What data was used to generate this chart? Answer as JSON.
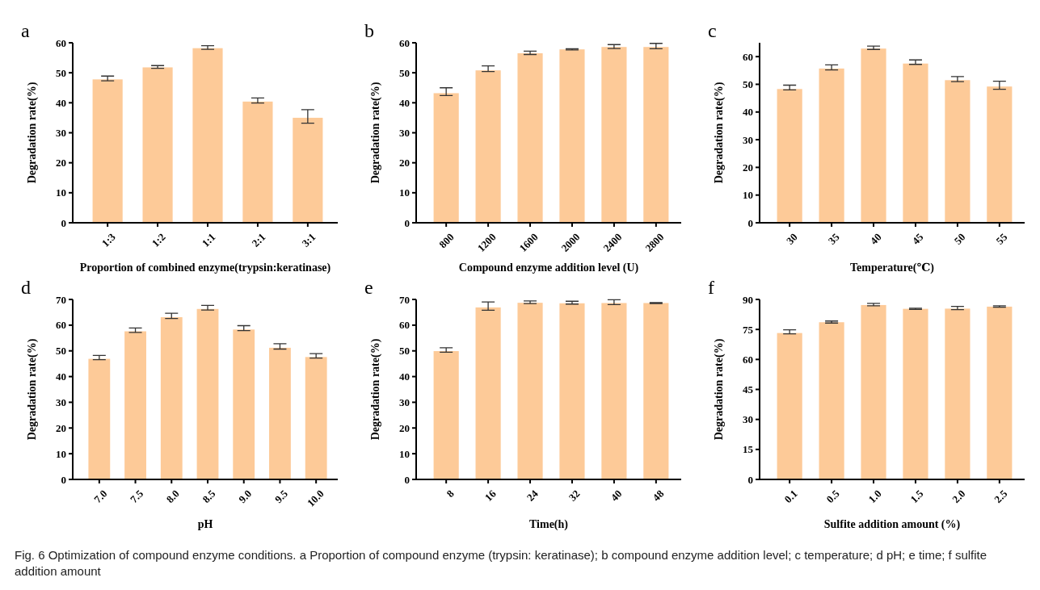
{
  "chart_data": [
    {
      "type": "bar",
      "title": "a",
      "xlabel": "Proportion of combined enzyme(trypsin:keratinase)",
      "ylabel": "Degradation rate(%)",
      "categories": [
        "1:3",
        "1:2",
        "1:1",
        "2:1",
        "3:1"
      ],
      "values": [
        47.8,
        51.8,
        58.2,
        40.4,
        35.0
      ],
      "errors": [
        [
          47.3,
          48.9
        ],
        [
          51.5,
          52.4
        ],
        [
          57.8,
          59.0
        ],
        [
          39.9,
          41.6
        ],
        [
          33.2,
          37.7
        ]
      ],
      "color": "#fdca98",
      "ylim": [
        0,
        60
      ],
      "yticks": [
        0,
        10,
        20,
        30,
        40,
        50,
        60
      ],
      "annotations": [
        "Fig. 6  Optimization of compound enzyme conditions. a Proportion of compound enzyme (trypsin: keratinase); b compound enzyme addition level; c temperature; d pH; e time; f sulfite addition amount"
      ]
    },
    {
      "type": "bar",
      "title": "b",
      "xlabel": "Compound enzyme addition level (U)",
      "ylabel": "Degradation rate(%)",
      "categories": [
        "800",
        "1200",
        "1600",
        "2000",
        "2400",
        "2800"
      ],
      "values": [
        43.2,
        50.8,
        56.5,
        57.8,
        58.6,
        58.6
      ],
      "errors": [
        [
          42.4,
          45.0
        ],
        [
          50.4,
          52.3
        ],
        [
          56.1,
          57.2
        ],
        [
          57.6,
          58.0
        ],
        [
          58.1,
          59.4
        ],
        [
          58.0,
          59.8
        ]
      ],
      "color": "#fdca98",
      "ylim": [
        0,
        60
      ],
      "yticks": [
        0,
        10,
        20,
        30,
        40,
        50,
        60
      ]
    },
    {
      "type": "bar",
      "title": "c",
      "xlabel": "Temperature(℃)",
      "ylabel": "Degradation rate(%)",
      "categories": [
        "30",
        "35",
        "40",
        "45",
        "50",
        "55"
      ],
      "values": [
        48.3,
        55.7,
        62.9,
        57.5,
        51.5,
        49.2
      ],
      "errors": [
        [
          48.0,
          49.7
        ],
        [
          55.2,
          57.0
        ],
        [
          62.6,
          63.8
        ],
        [
          57.2,
          58.8
        ],
        [
          51.0,
          52.8
        ],
        [
          48.2,
          51.1
        ]
      ],
      "color": "#fdca98",
      "ylim": [
        0,
        65
      ],
      "yticks": [
        0,
        10,
        20,
        30,
        40,
        50,
        60
      ]
    },
    {
      "type": "bar",
      "title": "d",
      "xlabel": "pH",
      "ylabel": "Degradation rate(%)",
      "categories": [
        "7.0",
        "7.5",
        "8.0",
        "8.5",
        "9.0",
        "9.5",
        "10.0"
      ],
      "values": [
        46.9,
        57.6,
        63.1,
        66.3,
        58.3,
        51.2,
        47.6
      ],
      "errors": [
        [
          46.6,
          48.2
        ],
        [
          57.2,
          58.9
        ],
        [
          62.6,
          64.6
        ],
        [
          65.9,
          67.7
        ],
        [
          57.9,
          59.8
        ],
        [
          50.7,
          52.8
        ],
        [
          47.2,
          48.9
        ]
      ],
      "color": "#fdca98",
      "ylim": [
        0,
        70
      ],
      "yticks": [
        0,
        10,
        20,
        30,
        40,
        50,
        60,
        70
      ]
    },
    {
      "type": "bar",
      "title": "e",
      "xlabel": "Time(h)",
      "ylabel": "Degradation rate(%)",
      "categories": [
        "8",
        "16",
        "24",
        "32",
        "40",
        "48"
      ],
      "values": [
        49.9,
        66.9,
        68.7,
        68.5,
        68.6,
        68.6
      ],
      "errors": [
        [
          49.5,
          51.2
        ],
        [
          65.8,
          69.0
        ],
        [
          68.4,
          69.4
        ],
        [
          68.2,
          69.3
        ],
        [
          68.0,
          69.9
        ],
        [
          68.4,
          68.8
        ]
      ],
      "color": "#fdca98",
      "ylim": [
        0,
        70
      ],
      "yticks": [
        0,
        10,
        20,
        30,
        40,
        50,
        60,
        70
      ]
    },
    {
      "type": "bar",
      "title": "f",
      "xlabel": "Sulfite addition amount (%)",
      "ylabel": "Degradation rate(%)",
      "categories": [
        "0.1",
        "0.5",
        "1.0",
        "1.5",
        "2.0",
        "2.5"
      ],
      "values": [
        73.2,
        78.6,
        87.2,
        85.3,
        85.4,
        86.4
      ],
      "errors": [
        [
          72.8,
          74.8
        ],
        [
          78.2,
          79.2
        ],
        [
          86.8,
          88.0
        ],
        [
          85.0,
          85.6
        ],
        [
          84.9,
          86.5
        ],
        [
          86.1,
          86.8
        ]
      ],
      "color": "#fdca98",
      "ylim": [
        0,
        90
      ],
      "yticks": [
        0,
        15,
        30,
        45,
        60,
        75,
        90
      ]
    }
  ]
}
